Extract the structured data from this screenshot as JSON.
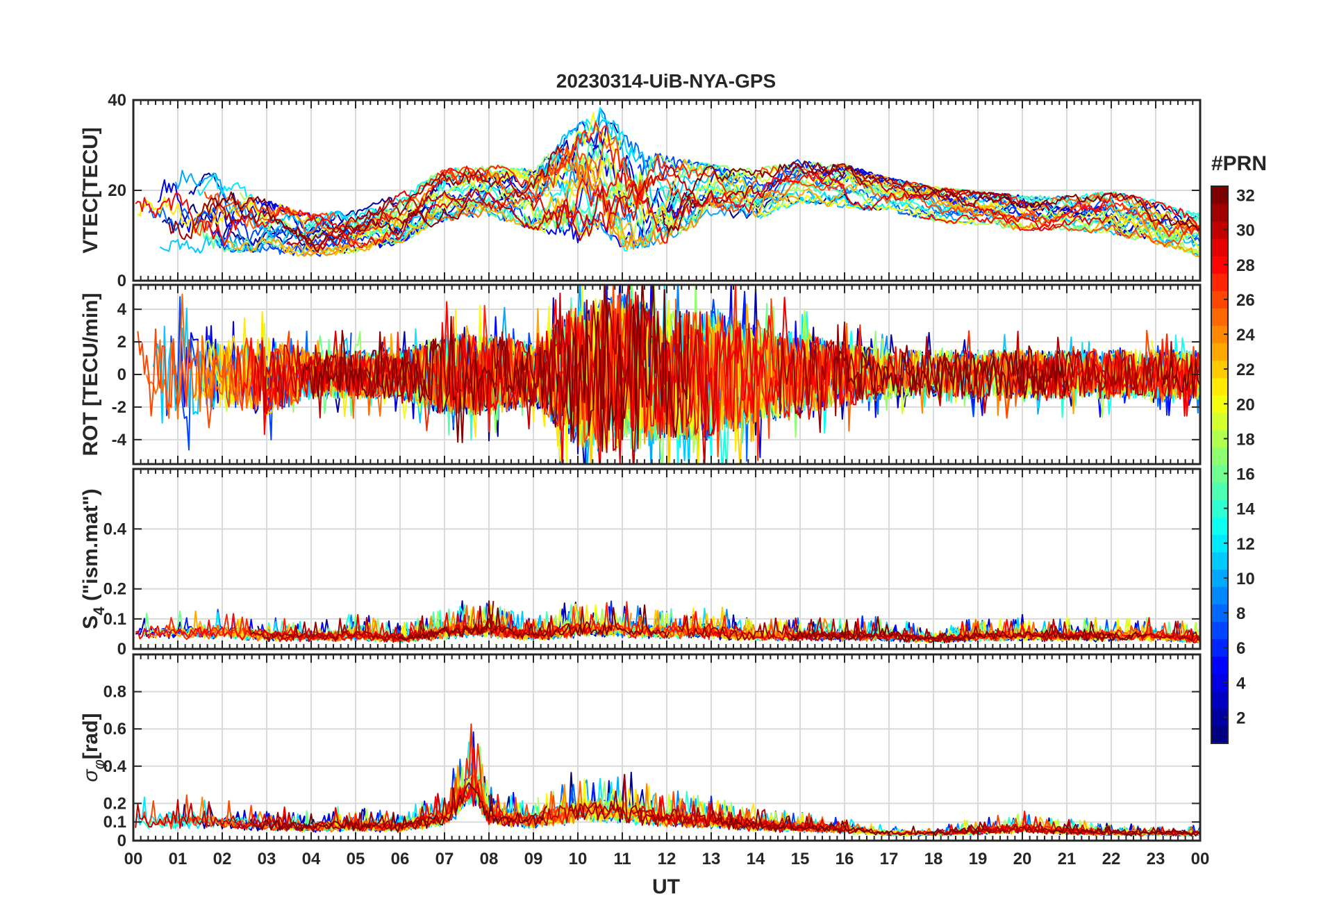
{
  "chart_data": {
    "type": "line",
    "title": "20230314-UiB-NYA-GPS",
    "xlabel": "UT",
    "x_ticks": [
      "00",
      "01",
      "02",
      "03",
      "04",
      "05",
      "06",
      "07",
      "08",
      "09",
      "10",
      "11",
      "12",
      "13",
      "14",
      "15",
      "16",
      "17",
      "18",
      "19",
      "20",
      "21",
      "22",
      "23",
      "00"
    ],
    "xlim_hours": [
      0,
      24
    ],
    "grid": true,
    "colormap": "jet",
    "colorbar": {
      "label": "#PRN",
      "range": [
        1,
        32
      ],
      "ticks": [
        "2",
        "4",
        "6",
        "8",
        "10",
        "12",
        "14",
        "16",
        "18",
        "20",
        "22",
        "24",
        "26",
        "28",
        "30",
        "32"
      ]
    },
    "panels": [
      {
        "id": "vtec",
        "ylabel": "VTEC[TECU]",
        "ylim": [
          0,
          40
        ],
        "yticks": [
          "0",
          "20",
          "40"
        ],
        "envelope": {
          "x": [
            0,
            1,
            2,
            3,
            4,
            5,
            6,
            7,
            8,
            9,
            10,
            10.5,
            11,
            12,
            13,
            14,
            15,
            16,
            17,
            18,
            19,
            20,
            21,
            22,
            23,
            24
          ],
          "center": [
            14,
            15,
            15,
            12,
            10,
            11,
            14,
            19,
            20,
            18,
            22,
            25,
            20,
            18,
            20,
            19,
            22,
            21,
            19,
            17,
            16,
            15,
            15,
            15,
            13,
            10
          ],
          "spread": [
            9,
            10,
            9,
            6,
            5,
            5,
            6,
            6,
            6,
            7,
            14,
            14,
            14,
            10,
            6,
            6,
            5,
            5,
            4,
            4,
            4,
            4,
            4,
            5,
            5,
            5
          ]
        }
      },
      {
        "id": "rot",
        "ylabel": "ROT [TECU/min]",
        "ylim": [
          -5.5,
          5.5
        ],
        "yticks": [
          "-4",
          "-2",
          "0",
          "2",
          "4"
        ],
        "envelope": {
          "x": [
            0,
            1,
            2,
            3,
            4,
            5,
            6,
            7,
            8,
            9,
            10,
            11,
            12,
            13,
            14,
            15,
            16,
            17,
            18,
            19,
            20,
            21,
            22,
            23,
            24
          ],
          "center": [
            0,
            0,
            0,
            0,
            0,
            0,
            0,
            0,
            0,
            0,
            0,
            0,
            0,
            0,
            0,
            0,
            0,
            0,
            0,
            0,
            0,
            0,
            0,
            0,
            0
          ],
          "spread": [
            3,
            3,
            2,
            2.5,
            1.5,
            1.5,
            1.5,
            2.5,
            2.5,
            2,
            4.5,
            5,
            4,
            4,
            3,
            2.5,
            2,
            1.5,
            1.5,
            1.5,
            1.5,
            1.5,
            1.5,
            1.5,
            1.5
          ]
        }
      },
      {
        "id": "s4",
        "ylabel": "S4 (\"ism.mat\")",
        "ylabel_main": "S",
        "ylabel_sub": "4",
        "ylabel_rest": " (\"ism.mat\")",
        "ylim": [
          0,
          0.6
        ],
        "yticks": [
          "0",
          "0.1",
          "0.2",
          "0.4"
        ],
        "envelope": {
          "x": [
            0,
            1,
            2,
            3,
            4,
            5,
            6,
            7,
            8,
            9,
            10,
            11,
            12,
            13,
            14,
            15,
            16,
            17,
            18,
            19,
            20,
            21,
            22,
            23,
            24
          ],
          "center": [
            0.05,
            0.05,
            0.05,
            0.04,
            0.04,
            0.04,
            0.03,
            0.05,
            0.06,
            0.04,
            0.06,
            0.06,
            0.05,
            0.05,
            0.04,
            0.04,
            0.04,
            0.04,
            0.03,
            0.04,
            0.04,
            0.04,
            0.04,
            0.04,
            0.03
          ],
          "spread": [
            0.06,
            0.06,
            0.07,
            0.05,
            0.04,
            0.06,
            0.04,
            0.07,
            0.08,
            0.05,
            0.08,
            0.07,
            0.06,
            0.08,
            0.04,
            0.05,
            0.05,
            0.05,
            0.03,
            0.05,
            0.05,
            0.05,
            0.05,
            0.05,
            0.04
          ]
        }
      },
      {
        "id": "sigma_phi",
        "ylabel": "σφ[rad]",
        "ylabel_main": "σ",
        "ylabel_sub": "φ",
        "ylabel_rest": "[rad]",
        "ylim": [
          0,
          1
        ],
        "yticks": [
          "0",
          "0.1",
          "0.2",
          "0.4",
          "0.6",
          "0.8"
        ],
        "envelope": {
          "x": [
            0,
            1,
            2,
            3,
            4,
            5,
            6,
            7,
            7.7,
            8,
            9,
            10,
            11,
            12,
            13,
            14,
            15,
            16,
            17,
            18,
            19,
            20,
            21,
            22,
            23,
            24
          ],
          "center": [
            0.09,
            0.1,
            0.09,
            0.08,
            0.07,
            0.08,
            0.07,
            0.12,
            0.3,
            0.12,
            0.1,
            0.15,
            0.14,
            0.11,
            0.1,
            0.08,
            0.07,
            0.06,
            0.04,
            0.04,
            0.05,
            0.06,
            0.05,
            0.04,
            0.04,
            0.04
          ],
          "spread": [
            0.1,
            0.14,
            0.1,
            0.08,
            0.06,
            0.08,
            0.06,
            0.12,
            0.3,
            0.14,
            0.1,
            0.18,
            0.18,
            0.12,
            0.1,
            0.08,
            0.06,
            0.05,
            0.03,
            0.03,
            0.05,
            0.07,
            0.05,
            0.04,
            0.03,
            0.03
          ]
        }
      }
    ],
    "satellites": [
      1,
      2,
      3,
      4,
      5,
      6,
      7,
      8,
      9,
      10,
      11,
      12,
      13,
      14,
      15,
      16,
      17,
      18,
      19,
      20,
      21,
      22,
      23,
      24,
      25,
      26,
      27,
      28,
      29,
      30,
      31,
      32
    ]
  }
}
